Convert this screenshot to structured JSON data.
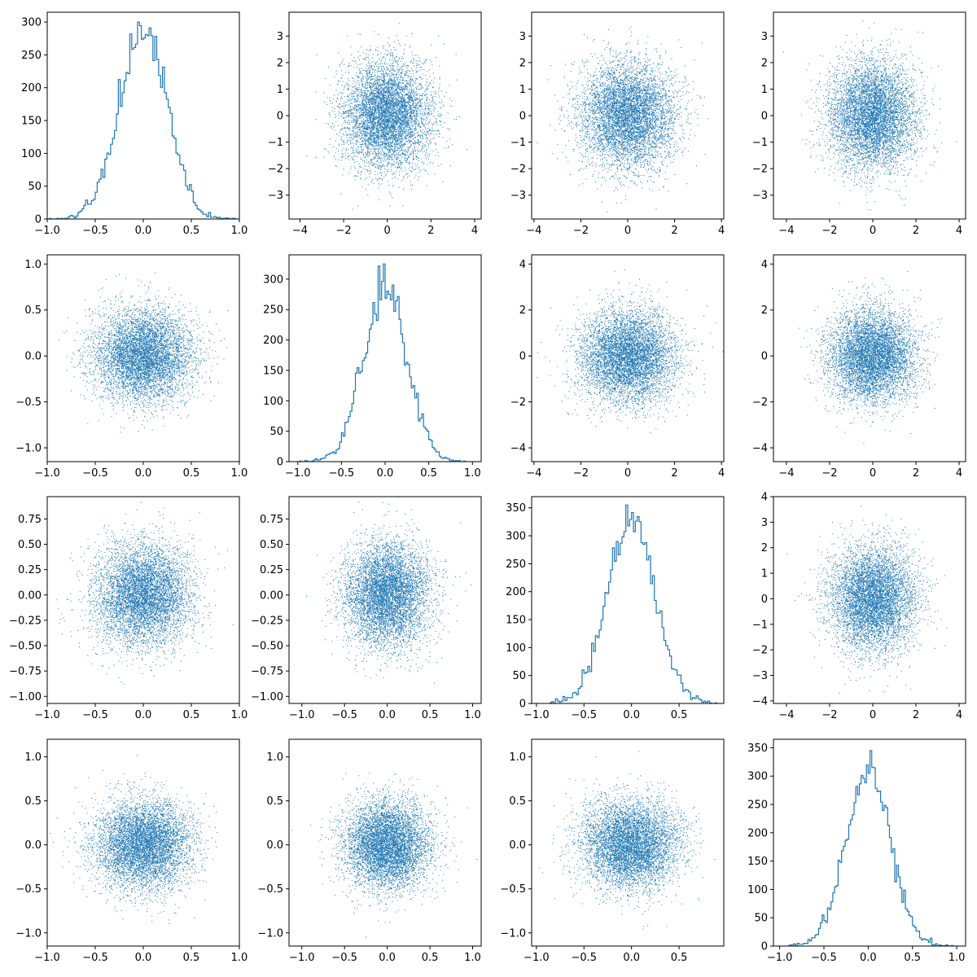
{
  "chart_data": {
    "type": "scatter",
    "layout": "4x4 pair-plot matrix; histograms on the diagonal, scatter plots off-diagonal",
    "color": "#1f77b4",
    "grid": false,
    "legend": "none",
    "panels": [
      {
        "row": 0,
        "col": 0,
        "type": "histogram",
        "std_x": 0.25,
        "bins": 100,
        "xlim": [
          -1.0,
          1.0
        ],
        "ylim": [
          0,
          315
        ],
        "xticks": [
          -1.0,
          -0.5,
          0.0,
          0.5,
          1.0
        ],
        "xtick_labels": [
          "−1.0",
          "−0.5",
          "0.0",
          "0.5",
          "1.0"
        ],
        "yticks": [
          0,
          50,
          100,
          150,
          200,
          250,
          300
        ],
        "ytick_labels": [
          "0",
          "50",
          "100",
          "150",
          "200",
          "250",
          "300"
        ],
        "peak": 300
      },
      {
        "row": 0,
        "col": 1,
        "type": "scatter",
        "std_x": 1.0,
        "std_y": 1.0,
        "points": 6000,
        "xlim": [
          -4.5,
          4.3
        ],
        "ylim": [
          -3.9,
          3.9
        ],
        "xticks": [
          -4,
          -2,
          0,
          2,
          4
        ],
        "xtick_labels": [
          "−4",
          "−2",
          "0",
          "2",
          "4"
        ],
        "yticks": [
          -3,
          -2,
          -1,
          0,
          1,
          2,
          3
        ],
        "ytick_labels": [
          "−3",
          "−2",
          "−1",
          "0",
          "1",
          "2",
          "3"
        ]
      },
      {
        "row": 0,
        "col": 2,
        "type": "scatter",
        "std_x": 1.0,
        "std_y": 1.0,
        "points": 6000,
        "xlim": [
          -4.1,
          4.1
        ],
        "ylim": [
          -3.9,
          3.9
        ],
        "xticks": [
          -4,
          -2,
          0,
          2,
          4
        ],
        "xtick_labels": [
          "−4",
          "−2",
          "0",
          "2",
          "4"
        ],
        "yticks": [
          -3,
          -2,
          -1,
          0,
          1,
          2,
          3
        ],
        "ytick_labels": [
          "−3",
          "−2",
          "−1",
          "0",
          "1",
          "2",
          "3"
        ]
      },
      {
        "row": 0,
        "col": 3,
        "type": "scatter",
        "std_x": 1.0,
        "std_y": 1.0,
        "points": 6000,
        "xlim": [
          -4.6,
          4.3
        ],
        "ylim": [
          -3.9,
          3.9
        ],
        "xticks": [
          -4,
          -2,
          0,
          2,
          4
        ],
        "xtick_labels": [
          "−4",
          "−2",
          "0",
          "2",
          "4"
        ],
        "yticks": [
          -3,
          -2,
          -1,
          0,
          1,
          2,
          3
        ],
        "ytick_labels": [
          "−3",
          "−2",
          "−1",
          "0",
          "1",
          "2",
          "3"
        ]
      },
      {
        "row": 1,
        "col": 0,
        "type": "scatter",
        "std_x": 0.25,
        "std_y": 0.25,
        "points": 6000,
        "xlim": [
          -1.0,
          1.0
        ],
        "ylim": [
          -1.15,
          1.1
        ],
        "xticks": [
          -1.0,
          -0.5,
          0.0,
          0.5,
          1.0
        ],
        "xtick_labels": [
          "−1.0",
          "−0.5",
          "0.0",
          "0.5",
          "1.0"
        ],
        "yticks": [
          -1.0,
          -0.5,
          0.0,
          0.5,
          1.0
        ],
        "ytick_labels": [
          "−1.0",
          "−0.5",
          "0.0",
          "0.5",
          "1.0"
        ]
      },
      {
        "row": 1,
        "col": 1,
        "type": "histogram",
        "std_x": 0.25,
        "bins": 100,
        "xlim": [
          -1.1,
          1.1
        ],
        "ylim": [
          0,
          340
        ],
        "xticks": [
          -1.0,
          -0.5,
          0.0,
          0.5,
          1.0
        ],
        "xtick_labels": [
          "−1.0",
          "−0.5",
          "0.0",
          "0.5",
          "1.0"
        ],
        "yticks": [
          0,
          50,
          100,
          150,
          200,
          250,
          300
        ],
        "ytick_labels": [
          "0",
          "50",
          "100",
          "150",
          "200",
          "250",
          "300"
        ],
        "peak": 325
      },
      {
        "row": 1,
        "col": 2,
        "type": "scatter",
        "std_x": 1.0,
        "std_y": 1.0,
        "points": 6000,
        "xlim": [
          -4.1,
          4.1
        ],
        "ylim": [
          -4.6,
          4.4
        ],
        "xticks": [
          -4,
          -2,
          0,
          2,
          4
        ],
        "xtick_labels": [
          "−4",
          "−2",
          "0",
          "2",
          "4"
        ],
        "yticks": [
          -4,
          -2,
          0,
          2,
          4
        ],
        "ytick_labels": [
          "−4",
          "−2",
          "0",
          "2",
          "4"
        ]
      },
      {
        "row": 1,
        "col": 3,
        "type": "scatter",
        "std_x": 1.0,
        "std_y": 1.0,
        "points": 6000,
        "xlim": [
          -4.6,
          4.3
        ],
        "ylim": [
          -4.6,
          4.4
        ],
        "xticks": [
          -4,
          -2,
          0,
          2,
          4
        ],
        "xtick_labels": [
          "−4",
          "−2",
          "0",
          "2",
          "4"
        ],
        "yticks": [
          -4,
          -2,
          0,
          2,
          4
        ],
        "ytick_labels": [
          "−4",
          "−2",
          "0",
          "2",
          "4"
        ]
      },
      {
        "row": 2,
        "col": 0,
        "type": "scatter",
        "std_x": 0.25,
        "std_y": 0.25,
        "points": 6000,
        "xlim": [
          -1.0,
          1.0
        ],
        "ylim": [
          -1.07,
          0.97
        ],
        "xticks": [
          -1.0,
          -0.5,
          0.0,
          0.5,
          1.0
        ],
        "xtick_labels": [
          "−1.0",
          "−0.5",
          "0.0",
          "0.5",
          "1.0"
        ],
        "yticks": [
          -1.0,
          -0.75,
          -0.5,
          -0.25,
          0.0,
          0.25,
          0.5,
          0.75
        ],
        "ytick_labels": [
          "−1.00",
          "−0.75",
          "−0.50",
          "−0.25",
          "0.00",
          "0.25",
          "0.50",
          "0.75"
        ]
      },
      {
        "row": 2,
        "col": 1,
        "type": "scatter",
        "std_x": 0.25,
        "std_y": 0.25,
        "points": 6000,
        "xlim": [
          -1.15,
          1.1
        ],
        "ylim": [
          -1.07,
          0.97
        ],
        "xticks": [
          -1.0,
          -0.5,
          0.0,
          0.5,
          1.0
        ],
        "xtick_labels": [
          "−1.0",
          "−0.5",
          "0.0",
          "0.5",
          "1.0"
        ],
        "yticks": [
          -1.0,
          -0.75,
          -0.5,
          -0.25,
          0.0,
          0.25,
          0.5,
          0.75
        ],
        "ytick_labels": [
          "−1.00",
          "−0.75",
          "−0.50",
          "−0.25",
          "0.00",
          "0.25",
          "0.50",
          "0.75"
        ]
      },
      {
        "row": 2,
        "col": 2,
        "type": "histogram",
        "std_x": 0.25,
        "bins": 100,
        "xlim": [
          -1.05,
          0.97
        ],
        "ylim": [
          0,
          370
        ],
        "xticks": [
          -1.0,
          -0.5,
          0.0,
          0.5
        ],
        "xtick_labels": [
          "−1.0",
          "−0.5",
          "0.0",
          "0.5"
        ],
        "yticks": [
          0,
          50,
          100,
          150,
          200,
          250,
          300,
          350
        ],
        "ytick_labels": [
          "0",
          "50",
          "100",
          "150",
          "200",
          "250",
          "300",
          "350"
        ],
        "peak": 355
      },
      {
        "row": 2,
        "col": 3,
        "type": "scatter",
        "std_x": 1.0,
        "std_y": 1.0,
        "points": 6000,
        "xlim": [
          -4.6,
          4.3
        ],
        "ylim": [
          -4.1,
          4.0
        ],
        "xticks": [
          -4,
          -2,
          0,
          2,
          4
        ],
        "xtick_labels": [
          "−4",
          "−2",
          "0",
          "2",
          "4"
        ],
        "yticks": [
          -4,
          -3,
          -2,
          -1,
          0,
          1,
          2,
          3,
          4
        ],
        "ytick_labels": [
          "−4",
          "−3",
          "−2",
          "−1",
          "0",
          "1",
          "2",
          "3",
          "4"
        ]
      },
      {
        "row": 3,
        "col": 0,
        "type": "scatter",
        "std_x": 0.25,
        "std_y": 0.25,
        "points": 6000,
        "xlim": [
          -1.0,
          1.0
        ],
        "ylim": [
          -1.15,
          1.2
        ],
        "xticks": [
          -1.0,
          -0.5,
          0.0,
          0.5,
          1.0
        ],
        "xtick_labels": [
          "−1.0",
          "−0.5",
          "0.0",
          "0.5",
          "1.0"
        ],
        "yticks": [
          -1.0,
          -0.5,
          0.0,
          0.5,
          1.0
        ],
        "ytick_labels": [
          "−1.0",
          "−0.5",
          "0.0",
          "0.5",
          "1.0"
        ]
      },
      {
        "row": 3,
        "col": 1,
        "type": "scatter",
        "std_x": 0.25,
        "std_y": 0.25,
        "points": 6000,
        "xlim": [
          -1.15,
          1.1
        ],
        "ylim": [
          -1.15,
          1.2
        ],
        "xticks": [
          -1.0,
          -0.5,
          0.0,
          0.5,
          1.0
        ],
        "xtick_labels": [
          "−1.0",
          "−0.5",
          "0.0",
          "0.5",
          "1.0"
        ],
        "yticks": [
          -1.0,
          -0.5,
          0.0,
          0.5,
          1.0
        ],
        "ytick_labels": [
          "−1.0",
          "−0.5",
          "0.0",
          "0.5",
          "1.0"
        ]
      },
      {
        "row": 3,
        "col": 2,
        "type": "scatter",
        "std_x": 0.25,
        "std_y": 0.25,
        "points": 6000,
        "xlim": [
          -1.05,
          0.97
        ],
        "ylim": [
          -1.15,
          1.2
        ],
        "xticks": [
          -1.0,
          -0.5,
          0.0,
          0.5
        ],
        "xtick_labels": [
          "−1.0",
          "−0.5",
          "0.0",
          "0.5"
        ],
        "yticks": [
          -1.0,
          -0.5,
          0.0,
          0.5,
          1.0
        ],
        "ytick_labels": [
          "−1.0",
          "−0.5",
          "0.0",
          "0.5",
          "1.0"
        ]
      },
      {
        "row": 3,
        "col": 3,
        "type": "histogram",
        "std_x": 0.25,
        "bins": 100,
        "xlim": [
          -1.07,
          1.1
        ],
        "ylim": [
          0,
          365
        ],
        "xticks": [
          -1.0,
          -0.5,
          0.0,
          0.5,
          1.0
        ],
        "xtick_labels": [
          "−1.0",
          "−0.5",
          "0.0",
          "0.5",
          "1.0"
        ],
        "yticks": [
          0,
          50,
          100,
          150,
          200,
          250,
          300,
          350
        ],
        "ytick_labels": [
          "0",
          "50",
          "100",
          "150",
          "200",
          "250",
          "300",
          "350"
        ],
        "peak": 345
      }
    ]
  }
}
